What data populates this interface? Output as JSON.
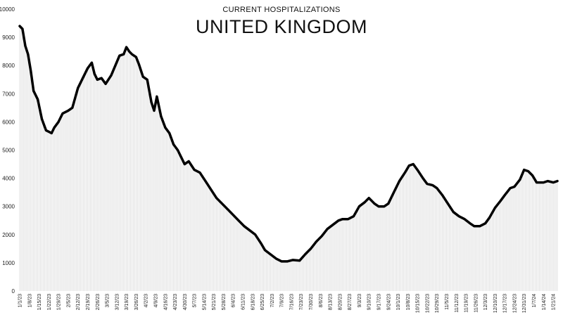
{
  "chart_data": {
    "type": "area",
    "subtitle": "CURRENT HOSPITALIZATIONS",
    "title": "UNITED KINGDOM",
    "xlabel": "",
    "ylabel": "",
    "ylim": [
      0,
      10000
    ],
    "yticks": [
      0,
      1000,
      2000,
      3000,
      4000,
      5000,
      6000,
      7000,
      8000,
      9000,
      10000
    ],
    "x_tick_labels": [
      "1/1/23",
      "1/8/23",
      "1/15/23",
      "1/22/23",
      "1/29/23",
      "2/5/23",
      "2/12/23",
      "2/19/23",
      "2/26/23",
      "3/5/23",
      "3/12/23",
      "3/19/23",
      "3/26/23",
      "4/2/23",
      "4/9/23",
      "4/16/23",
      "4/23/23",
      "4/30/23",
      "5/7/23",
      "5/14/23",
      "5/21/23",
      "5/28/23",
      "6/4/23",
      "6/11/23",
      "6/18/23",
      "6/25/23",
      "7/2/23",
      "7/9/23",
      "7/16/23",
      "7/23/23",
      "7/30/23",
      "8/6/23",
      "8/13/23",
      "8/20/23",
      "8/27/23",
      "9/3/23",
      "9/10/23",
      "9/17/23",
      "9/24/23",
      "10/1/23",
      "10/8/23",
      "10/15/23",
      "10/22/23",
      "10/29/23",
      "11/5/23",
      "11/12/23",
      "11/19/23",
      "11/26/23",
      "12/3/23",
      "12/10/23",
      "12/17/23",
      "12/24/23",
      "12/31/23",
      "1/7/24",
      "1/14/24",
      "1/21/24"
    ],
    "x_start": "1/1/23",
    "x_end": "1/24/24",
    "fill_color": "#d9d9d9",
    "line_color": "#000000",
    "grid": false,
    "series": [
      {
        "x": [
          "1/1/23",
          "1/3/23",
          "1/5/23",
          "1/7/23",
          "1/9/23",
          "1/11/23",
          "1/14/23",
          "1/17/23",
          "1/20/23",
          "1/22/23",
          "1/24/23",
          "1/26/23",
          "1/29/23",
          "2/1/23",
          "2/5/23",
          "2/8/23",
          "2/12/23",
          "2/16/23",
          "2/19/23",
          "2/22/23",
          "2/24/23",
          "2/26/23",
          "3/1/23",
          "3/4/23",
          "3/6/23",
          "3/8/23",
          "3/11/23",
          "3/14/23",
          "3/17/23",
          "3/19/23",
          "3/21/23",
          "3/23/23",
          "3/26/23",
          "3/28/23",
          "3/31/23",
          "4/3/23",
          "4/6/23",
          "4/8/23",
          "4/10/23",
          "4/13/23",
          "4/16/23",
          "4/19/23",
          "4/22/23",
          "4/25/23",
          "4/27/23",
          "4/30/23",
          "5/3/23",
          "5/7/23",
          "5/11/23",
          "5/15/23",
          "5/19/23",
          "5/23/23",
          "5/27/23",
          "5/31/23",
          "6/4/23",
          "6/8/23",
          "6/12/23",
          "6/16/23",
          "6/20/23",
          "6/24/23",
          "6/27/23",
          "7/1/23",
          "7/5/23",
          "7/9/23",
          "7/13/23",
          "7/17/23",
          "7/22/23",
          "7/26/23",
          "7/30/23",
          "8/3/23",
          "8/7/23",
          "8/11/23",
          "8/15/23",
          "8/19/23",
          "8/22/23",
          "8/26/23",
          "8/30/23",
          "9/3/23",
          "9/7/23",
          "9/10/23",
          "9/14/23",
          "9/17/23",
          "9/21/23",
          "9/24/23",
          "9/28/23",
          "10/2/23",
          "10/6/23",
          "10/9/23",
          "10/12/23",
          "10/15/23",
          "10/19/23",
          "10/22/23",
          "10/26/23",
          "10/29/23",
          "11/2/23",
          "11/6/23",
          "11/10/23",
          "11/14/23",
          "11/18/23",
          "11/22/23",
          "11/25/23",
          "11/29/23",
          "12/3/23",
          "12/6/23",
          "12/10/23",
          "12/14/23",
          "12/17/23",
          "12/21/23",
          "12/24/23",
          "12/28/23",
          "12/31/23",
          "1/3/24",
          "1/6/24",
          "1/9/24",
          "1/12/24",
          "1/14/24",
          "1/17/24",
          "1/21/24",
          "1/24/24"
        ],
        "values": [
          9400,
          9300,
          8700,
          8400,
          7800,
          7100,
          6800,
          6100,
          5700,
          5650,
          5600,
          5800,
          6000,
          6300,
          6400,
          6500,
          7200,
          7600,
          7900,
          8100,
          7700,
          7500,
          7550,
          7350,
          7500,
          7650,
          8000,
          8350,
          8400,
          8650,
          8500,
          8400,
          8300,
          8050,
          7600,
          7500,
          6700,
          6400,
          6900,
          6200,
          5800,
          5600,
          5200,
          5000,
          4800,
          4500,
          4600,
          4300,
          4200,
          3900,
          3600,
          3300,
          3100,
          2900,
          2700,
          2500,
          2300,
          2150,
          2000,
          1700,
          1450,
          1300,
          1150,
          1050,
          1050,
          1100,
          1080,
          1300,
          1500,
          1750,
          1950,
          2200,
          2350,
          2500,
          2550,
          2550,
          2650,
          3000,
          3150,
          3300,
          3100,
          3000,
          3000,
          3100,
          3500,
          3900,
          4200,
          4450,
          4500,
          4300,
          4000,
          3800,
          3750,
          3650,
          3400,
          3100,
          2800,
          2650,
          2550,
          2400,
          2300,
          2300,
          2400,
          2600,
          2950,
          3200,
          3400,
          3650,
          3700,
          3950,
          4300,
          4250,
          4100,
          3850,
          3850,
          3850,
          3900,
          3850,
          3900
        ]
      }
    ]
  }
}
